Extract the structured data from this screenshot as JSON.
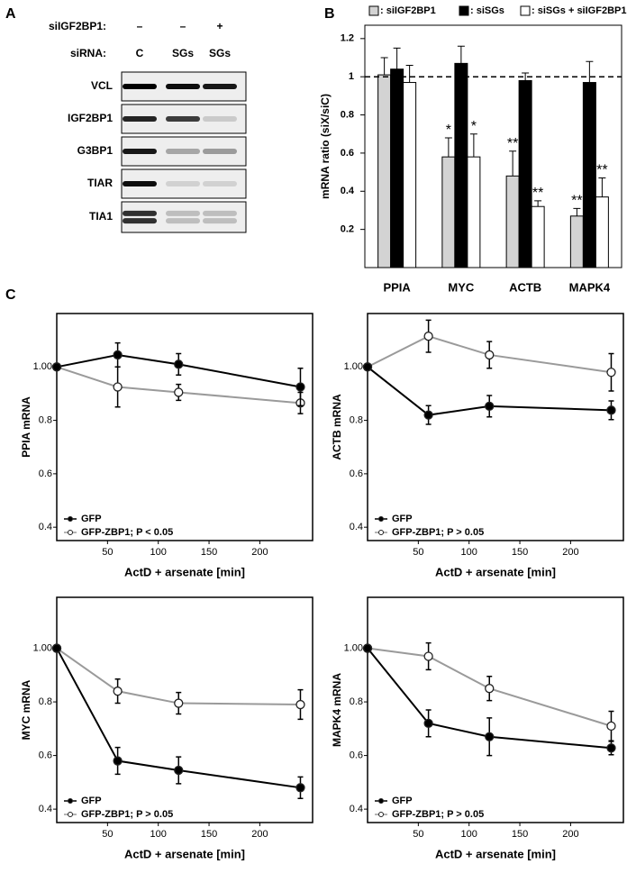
{
  "panel_labels": [
    "A",
    "B",
    "C"
  ],
  "blot": {
    "header_rows": [
      {
        "label": "siIGF2BP1:",
        "lanes": [
          "–",
          "–",
          "+"
        ]
      },
      {
        "label": "siRNA:",
        "lanes": [
          "C",
          "SGs",
          "SGs"
        ]
      }
    ],
    "rows": [
      "VCL",
      "IGF2BP1",
      "G3BP1",
      "TIAR",
      "TIA1"
    ]
  },
  "chart_data": [
    {
      "type": "bar",
      "y_label": "mRNA ratio (siX/siC)",
      "categories": [
        "PPIA",
        "MYC",
        "ACTB",
        "MAPK4"
      ],
      "ylim": [
        0,
        1.27
      ],
      "yticks": [
        0.2,
        0.4,
        0.6,
        0.8,
        1,
        1.2
      ],
      "reference_line": 1,
      "series": [
        {
          "name": ": siIGF2BP1",
          "color": "#d3d3d3",
          "values": [
            1.01,
            0.58,
            0.48,
            0.27
          ],
          "errors": [
            0.09,
            0.1,
            0.13,
            0.04
          ],
          "significance": [
            null,
            "*",
            "**",
            "**"
          ]
        },
        {
          "name": ": siSGs",
          "color": "#000000",
          "values": [
            1.04,
            1.07,
            0.98,
            0.97
          ],
          "errors": [
            0.11,
            0.09,
            0.04,
            0.11
          ],
          "significance": [
            null,
            null,
            null,
            null
          ]
        },
        {
          "name": ": siSGs + siIGF2BP1",
          "color": "#ffffff",
          "values": [
            0.97,
            0.58,
            0.32,
            0.37
          ],
          "errors": [
            0.09,
            0.12,
            0.03,
            0.1
          ],
          "significance": [
            null,
            "*",
            "**",
            "**"
          ]
        }
      ]
    },
    {
      "type": "line",
      "y_label": "PPIA mRNA",
      "x_label": "ActD + arsenate [min]",
      "x": [
        0,
        60,
        120,
        240
      ],
      "xlim": [
        0,
        252
      ],
      "xticks": [
        50,
        100,
        150,
        200
      ],
      "ylim": [
        0.35,
        1.2
      ],
      "yticks": [
        0.4,
        0.6,
        0.8,
        {
          "value": 1,
          "label": "1.00"
        }
      ],
      "legend": "lower left",
      "series": [
        {
          "name": "GFP",
          "color": "#000000",
          "marker_fill": "#000000",
          "values": [
            1,
            1.045,
            1.01,
            0.925
          ],
          "errors": [
            null,
            0.045,
            0.04,
            0.07
          ]
        },
        {
          "name": "GFP-ZBP1; P < 0.05",
          "color": "#9a9a9a",
          "marker_fill": "#ffffff",
          "values": [
            1,
            0.925,
            0.905,
            0.865
          ],
          "errors": [
            null,
            0.075,
            0.03,
            0.04
          ]
        }
      ]
    },
    {
      "type": "line",
      "y_label": "ACTB mRNA",
      "x_label": "ActD + arsenate [min]",
      "x": [
        0,
        60,
        120,
        240
      ],
      "xlim": [
        0,
        252
      ],
      "xticks": [
        50,
        100,
        150,
        200
      ],
      "ylim": [
        0.35,
        1.2
      ],
      "yticks": [
        0.4,
        0.6,
        0.8,
        {
          "value": 1,
          "label": "1.00"
        }
      ],
      "legend": "lower left",
      "series": [
        {
          "name": "GFP",
          "color": "#000000",
          "marker_fill": "#000000",
          "values": [
            1,
            0.82,
            0.853,
            0.838
          ],
          "errors": [
            null,
            0.035,
            0.04,
            0.035
          ]
        },
        {
          "name": "GFP-ZBP1; P > 0.05",
          "color": "#9a9a9a",
          "marker_fill": "#ffffff",
          "values": [
            1,
            1.115,
            1.045,
            0.98
          ],
          "errors": [
            null,
            0.06,
            0.05,
            0.07
          ]
        }
      ]
    },
    {
      "type": "line",
      "y_label": "MYC mRNA",
      "x_label": "ActD + arsenate [min]",
      "x": [
        0,
        60,
        120,
        240
      ],
      "xlim": [
        0,
        252
      ],
      "xticks": [
        50,
        100,
        150,
        200
      ],
      "ylim": [
        0.35,
        1.19
      ],
      "yticks": [
        0.4,
        0.6,
        0.8,
        {
          "value": 1,
          "label": "1.00"
        }
      ],
      "legend": "lower left",
      "series": [
        {
          "name": "GFP",
          "color": "#000000",
          "marker_fill": "#000000",
          "values": [
            1,
            0.58,
            0.545,
            0.48
          ],
          "errors": [
            null,
            0.05,
            0.05,
            0.04
          ]
        },
        {
          "name": "GFP-ZBP1; P > 0.05",
          "color": "#9a9a9a",
          "marker_fill": "#ffffff",
          "values": [
            1,
            0.84,
            0.795,
            0.79
          ],
          "errors": [
            null,
            0.045,
            0.04,
            0.055
          ]
        }
      ]
    },
    {
      "type": "line",
      "y_label": "MAPK4 mRNA",
      "x_label": "ActD + arsenate [min]",
      "x": [
        0,
        60,
        120,
        240
      ],
      "xlim": [
        0,
        252
      ],
      "xticks": [
        50,
        100,
        150,
        200
      ],
      "ylim": [
        0.35,
        1.19
      ],
      "yticks": [
        0.4,
        0.6,
        0.8,
        {
          "value": 1,
          "label": "1.00"
        }
      ],
      "legend": "lower left",
      "series": [
        {
          "name": "GFP",
          "color": "#000000",
          "marker_fill": "#000000",
          "values": [
            1,
            0.72,
            0.67,
            0.628
          ],
          "errors": [
            null,
            0.05,
            0.07,
            0.025
          ]
        },
        {
          "name": "GFP-ZBP1; P > 0.05",
          "color": "#9a9a9a",
          "marker_fill": "#ffffff",
          "values": [
            1,
            0.97,
            0.85,
            0.71
          ],
          "errors": [
            null,
            0.05,
            0.045,
            0.055
          ]
        }
      ]
    }
  ]
}
